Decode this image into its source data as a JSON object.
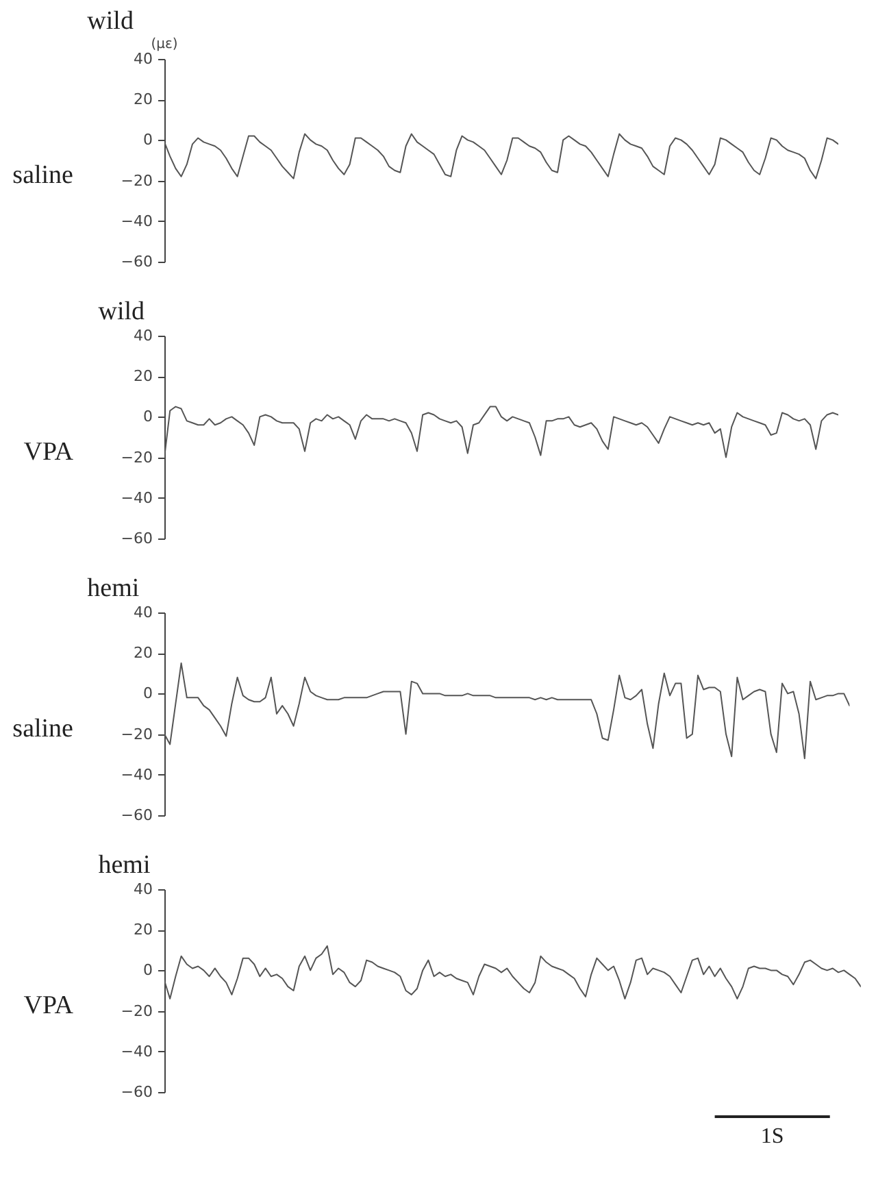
{
  "chart_data": [
    {
      "type": "line",
      "title": "wild",
      "ylabel": "saline",
      "annotations": [
        "(με)"
      ],
      "color": "#555555",
      "ylim": [
        -60,
        40
      ],
      "yticks": [
        -60,
        -40,
        -20,
        0,
        20,
        40
      ],
      "tick_labels": "y",
      "categories": [
        null,
        null,
        null,
        null,
        null,
        null,
        null,
        null,
        null,
        null,
        null,
        null,
        null,
        null,
        null,
        null,
        null,
        null,
        null,
        null,
        null,
        null,
        null,
        null,
        null,
        null,
        null,
        null,
        null,
        null,
        null,
        null,
        null,
        null,
        null,
        null,
        null,
        null,
        null,
        null,
        null,
        null,
        null,
        null,
        null,
        null,
        null,
        null,
        null,
        null,
        null,
        null,
        null,
        null,
        null,
        null,
        null,
        null,
        null,
        null,
        null,
        null,
        null,
        null,
        null,
        null,
        null,
        null,
        null,
        null,
        null,
        null,
        null,
        null,
        null,
        null,
        null,
        null,
        null,
        null,
        null,
        null,
        null,
        null,
        null,
        null,
        null,
        null,
        null,
        null,
        null,
        null,
        null,
        null,
        null,
        null,
        null,
        null,
        null,
        null,
        null,
        null,
        null,
        null,
        null,
        null,
        null,
        null,
        null,
        null,
        null,
        null,
        null,
        null,
        null,
        null,
        null,
        null,
        null,
        null,
        null
      ],
      "values": [
        -1,
        -8,
        -14,
        -18,
        -12,
        -2,
        1,
        -1,
        -2,
        -3,
        -5,
        -9,
        -14,
        -18,
        -8,
        2,
        2,
        -1,
        -3,
        -5,
        -9,
        -13,
        -16,
        -19,
        -6,
        3,
        0,
        -2,
        -3,
        -5,
        -10,
        -14,
        -17,
        -12,
        1,
        1,
        -1,
        -3,
        -5,
        -8,
        -13,
        -15,
        -16,
        -3,
        3,
        -1,
        -3,
        -5,
        -7,
        -12,
        -17,
        -18,
        -5,
        2,
        0,
        -1,
        -3,
        -5,
        -9,
        -13,
        -17,
        -10,
        1,
        1,
        -1,
        -3,
        -4,
        -6,
        -11,
        -15,
        -16,
        0,
        2,
        0,
        -2,
        -3,
        -6,
        -10,
        -14,
        -18,
        -7,
        3,
        0,
        -2,
        -3,
        -4,
        -8,
        -13,
        -15,
        -17,
        -3,
        1,
        0,
        -2,
        -5,
        -9,
        -13,
        -17,
        -12,
        1,
        0,
        -2,
        -4,
        -6,
        -11,
        -15,
        -17,
        -9,
        1,
        0,
        -3,
        -5,
        -6,
        -7,
        -9,
        -15,
        -19,
        -10,
        1,
        0,
        -2
      ]
    },
    {
      "type": "line",
      "title": "wild",
      "ylabel": "VPA",
      "color": "#555555",
      "ylim": [
        -60,
        40
      ],
      "yticks": [
        -60,
        -40,
        -20,
        0,
        20,
        40
      ],
      "tick_labels": "y",
      "categories": [
        null,
        null,
        null,
        null,
        null,
        null,
        null,
        null,
        null,
        null,
        null,
        null,
        null,
        null,
        null,
        null,
        null,
        null,
        null,
        null,
        null,
        null,
        null,
        null,
        null,
        null,
        null,
        null,
        null,
        null,
        null,
        null,
        null,
        null,
        null,
        null,
        null,
        null,
        null,
        null,
        null,
        null,
        null,
        null,
        null,
        null,
        null,
        null,
        null,
        null,
        null,
        null,
        null,
        null,
        null,
        null,
        null,
        null,
        null,
        null,
        null,
        null,
        null,
        null,
        null,
        null,
        null,
        null,
        null,
        null,
        null,
        null,
        null,
        null,
        null,
        null,
        null,
        null,
        null,
        null,
        null,
        null,
        null,
        null,
        null,
        null,
        null,
        null,
        null,
        null,
        null,
        null,
        null,
        null,
        null,
        null,
        null,
        null,
        null,
        null,
        null,
        null,
        null,
        null,
        null,
        null,
        null,
        null,
        null,
        null,
        null,
        null,
        null,
        null,
        null,
        null,
        null,
        null,
        null,
        null,
        null
      ],
      "values": [
        -20,
        3,
        5,
        4,
        -2,
        -3,
        -4,
        -4,
        -1,
        -4,
        -3,
        -1,
        0,
        -2,
        -4,
        -8,
        -14,
        0,
        1,
        0,
        -2,
        -3,
        -3,
        -3,
        -6,
        -17,
        -3,
        -1,
        -2,
        1,
        -1,
        0,
        -2,
        -4,
        -11,
        -2,
        1,
        -1,
        -1,
        -1,
        -2,
        -1,
        -2,
        -3,
        -8,
        -17,
        1,
        2,
        1,
        -1,
        -2,
        -3,
        -2,
        -5,
        -18,
        -4,
        -3,
        1,
        5,
        5,
        0,
        -2,
        0,
        -1,
        -2,
        -3,
        -10,
        -19,
        -2,
        -2,
        -1,
        -1,
        0,
        -4,
        -5,
        -4,
        -3,
        -6,
        -12,
        -16,
        0,
        -1,
        -2,
        -3,
        -4,
        -3,
        -5,
        -9,
        -13,
        -6,
        0,
        -1,
        -2,
        -3,
        -4,
        -3,
        -4,
        -3,
        -8,
        -6,
        -20,
        -5,
        2,
        0,
        -1,
        -2,
        -3,
        -4,
        -9,
        -8,
        2,
        1,
        -1,
        -2,
        -1,
        -4,
        -16,
        -2,
        1,
        2,
        1
      ]
    },
    {
      "type": "line",
      "title": "hemi",
      "ylabel": "saline",
      "color": "#555555",
      "ylim": [
        -60,
        40
      ],
      "yticks": [
        -60,
        -40,
        -20,
        0,
        20,
        40
      ],
      "tick_labels": "y",
      "categories": [
        null,
        null,
        null,
        null,
        null,
        null,
        null,
        null,
        null,
        null,
        null,
        null,
        null,
        null,
        null,
        null,
        null,
        null,
        null,
        null,
        null,
        null,
        null,
        null,
        null,
        null,
        null,
        null,
        null,
        null,
        null,
        null,
        null,
        null,
        null,
        null,
        null,
        null,
        null,
        null,
        null,
        null,
        null,
        null,
        null,
        null,
        null,
        null,
        null,
        null,
        null,
        null,
        null,
        null,
        null,
        null,
        null,
        null,
        null,
        null,
        null,
        null,
        null,
        null,
        null,
        null,
        null,
        null,
        null,
        null,
        null,
        null,
        null,
        null,
        null,
        null,
        null,
        null,
        null,
        null,
        null,
        null,
        null,
        null,
        null,
        null,
        null,
        null,
        null,
        null,
        null,
        null,
        null,
        null,
        null,
        null,
        null,
        null,
        null,
        null,
        null,
        null,
        null,
        null,
        null,
        null,
        null,
        null,
        null,
        null,
        null,
        null,
        null,
        null,
        null,
        null,
        null,
        null,
        null,
        null,
        null,
        null,
        null
      ],
      "values": [
        -20,
        -25,
        -5,
        15,
        -2,
        -2,
        -2,
        -6,
        -8,
        -12,
        -16,
        -21,
        -5,
        8,
        -1,
        -3,
        -4,
        -4,
        -2,
        8,
        -10,
        -6,
        -10,
        -16,
        -5,
        8,
        1,
        -1,
        -2,
        -3,
        -3,
        -3,
        -2,
        -2,
        -2,
        -2,
        -2,
        -1,
        0,
        1,
        1,
        1,
        1,
        -20,
        6,
        5,
        0,
        0,
        0,
        0,
        -1,
        -1,
        -1,
        -1,
        0,
        -1,
        -1,
        -1,
        -1,
        -2,
        -2,
        -2,
        -2,
        -2,
        -2,
        -2,
        -3,
        -2,
        -3,
        -2,
        -3,
        -3,
        -3,
        -3,
        -3,
        -3,
        -3,
        -10,
        -22,
        -23,
        -8,
        9,
        -2,
        -3,
        -1,
        2,
        -15,
        -27,
        -5,
        10,
        -1,
        5,
        5,
        -22,
        -20,
        9,
        2,
        3,
        3,
        1,
        -20,
        -31,
        8,
        -3,
        -1,
        1,
        2,
        1,
        -20,
        -29,
        5,
        0,
        1,
        -10,
        -32,
        6,
        -3,
        -2,
        -1,
        -1,
        0,
        0,
        -6
      ]
    },
    {
      "type": "line",
      "title": "hemi",
      "ylabel": "VPA",
      "annotations": [
        "1S"
      ],
      "color": "#555555",
      "ylim": [
        -60,
        40
      ],
      "yticks": [
        -60,
        -40,
        -20,
        0,
        20,
        40
      ],
      "tick_labels": "y",
      "categories": [
        null,
        null,
        null,
        null,
        null,
        null,
        null,
        null,
        null,
        null,
        null,
        null,
        null,
        null,
        null,
        null,
        null,
        null,
        null,
        null,
        null,
        null,
        null,
        null,
        null,
        null,
        null,
        null,
        null,
        null,
        null,
        null,
        null,
        null,
        null,
        null,
        null,
        null,
        null,
        null,
        null,
        null,
        null,
        null,
        null,
        null,
        null,
        null,
        null,
        null,
        null,
        null,
        null,
        null,
        null,
        null,
        null,
        null,
        null,
        null,
        null,
        null,
        null,
        null,
        null,
        null,
        null,
        null,
        null,
        null,
        null,
        null,
        null,
        null,
        null,
        null,
        null,
        null,
        null,
        null,
        null,
        null,
        null,
        null,
        null,
        null,
        null,
        null,
        null,
        null,
        null,
        null,
        null,
        null,
        null,
        null,
        null,
        null,
        null,
        null,
        null,
        null,
        null,
        null,
        null,
        null,
        null,
        null,
        null,
        null,
        null,
        null,
        null,
        null,
        null,
        null,
        null,
        null,
        null,
        null,
        null,
        null,
        null,
        null,
        null
      ],
      "values": [
        -5,
        -14,
        -3,
        7,
        3,
        1,
        2,
        0,
        -3,
        1,
        -3,
        -6,
        -12,
        -4,
        6,
        6,
        3,
        -3,
        1,
        -3,
        -2,
        -4,
        -8,
        -10,
        2,
        7,
        0,
        6,
        8,
        12,
        -2,
        1,
        -1,
        -6,
        -8,
        -5,
        5,
        4,
        2,
        1,
        0,
        -1,
        -3,
        -10,
        -12,
        -9,
        0,
        5,
        -3,
        -1,
        -3,
        -2,
        -4,
        -5,
        -6,
        -12,
        -3,
        3,
        2,
        1,
        -1,
        1,
        -3,
        -6,
        -9,
        -11,
        -6,
        7,
        4,
        2,
        1,
        0,
        -2,
        -4,
        -9,
        -13,
        -2,
        6,
        3,
        0,
        2,
        -5,
        -14,
        -6,
        5,
        6,
        -2,
        1,
        0,
        -1,
        -3,
        -7,
        -11,
        -3,
        5,
        6,
        -2,
        2,
        -3,
        1,
        -4,
        -8,
        -14,
        -8,
        1,
        2,
        1,
        1,
        0,
        0,
        -2,
        -3,
        -7,
        -2,
        4,
        5,
        3,
        1,
        0,
        1,
        -1,
        0,
        -2,
        -4,
        -8
      ]
    }
  ]
}
